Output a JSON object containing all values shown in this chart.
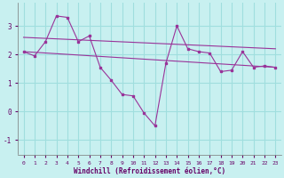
{
  "xlabel": "Windchill (Refroidissement éolien,°C)",
  "background_color": "#c8f0f0",
  "grid_color": "#a0dede",
  "line_color": "#993399",
  "label_color": "#660066",
  "xlim": [
    -0.5,
    23.5
  ],
  "ylim": [
    -1.5,
    3.8
  ],
  "yticks": [
    -1,
    0,
    1,
    2,
    3
  ],
  "xticks": [
    0,
    1,
    2,
    3,
    4,
    5,
    6,
    7,
    8,
    9,
    10,
    11,
    12,
    13,
    14,
    15,
    16,
    17,
    18,
    19,
    20,
    21,
    22,
    23
  ],
  "series1_x": [
    0,
    1,
    2,
    3,
    4,
    5,
    6,
    7,
    8,
    9,
    10,
    11,
    12,
    13,
    14,
    15,
    16,
    17,
    18,
    19,
    20,
    21,
    22,
    23
  ],
  "series1_y": [
    2.1,
    1.95,
    2.45,
    3.35,
    3.3,
    2.45,
    2.65,
    1.55,
    1.1,
    0.6,
    0.55,
    -0.05,
    -0.5,
    1.7,
    3.0,
    2.2,
    2.1,
    2.05,
    1.4,
    1.45,
    2.1,
    1.55,
    1.6,
    1.55
  ],
  "series2_x": [
    0,
    23
  ],
  "series2_y": [
    2.6,
    2.2
  ],
  "series3_x": [
    0,
    23
  ],
  "series3_y": [
    2.1,
    1.55
  ]
}
